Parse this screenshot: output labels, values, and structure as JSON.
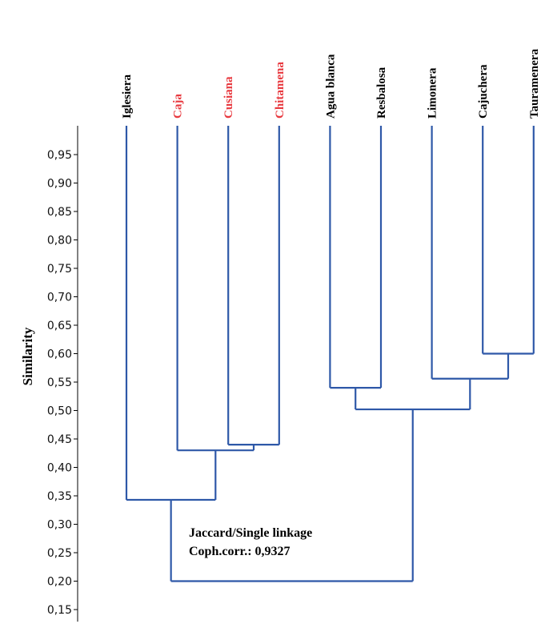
{
  "chart_data": {
    "type": "dendrogram",
    "ylabel": "Similarity",
    "ylim": [
      0.13,
      1.0
    ],
    "yticks": [
      0.15,
      0.2,
      0.25,
      0.3,
      0.35,
      0.4,
      0.45,
      0.5,
      0.55,
      0.6,
      0.65,
      0.7,
      0.75,
      0.8,
      0.85,
      0.9,
      0.95
    ],
    "ytick_labels": [
      "0,15",
      "0,20",
      "0,25",
      "0,30",
      "0,35",
      "0,40",
      "0,45",
      "0,50",
      "0,55",
      "0,60",
      "0,65",
      "0,70",
      "0,75",
      "0,80",
      "0,85",
      "0,90",
      "0,95"
    ],
    "leaves": [
      {
        "label": "Iglesiera",
        "color": "#000000"
      },
      {
        "label": "Caja",
        "color": "#e8393f"
      },
      {
        "label": "Cusiana",
        "color": "#e8393f"
      },
      {
        "label": "Chitamena",
        "color": "#e8393f"
      },
      {
        "label": "Agua blanca",
        "color": "#000000"
      },
      {
        "label": "Resbalosa",
        "color": "#000000"
      },
      {
        "label": "Limonera",
        "color": "#000000"
      },
      {
        "label": "Cajuchera",
        "color": "#000000"
      },
      {
        "label": "Tauramenera",
        "color": "#000000"
      }
    ],
    "merges": [
      {
        "a": "L2",
        "b": "L3",
        "sim": 0.44
      },
      {
        "a": "L1",
        "b": "N0",
        "sim": 0.43
      },
      {
        "a": "L0",
        "b": "N1",
        "sim": 0.343
      },
      {
        "a": "L4",
        "b": "L5",
        "sim": 0.54
      },
      {
        "a": "L7",
        "b": "L8",
        "sim": 0.6
      },
      {
        "a": "L6",
        "b": "N4",
        "sim": 0.556
      },
      {
        "a": "N3",
        "b": "N5",
        "sim": 0.502
      },
      {
        "a": "N2",
        "b": "N6",
        "sim": 0.2
      }
    ],
    "annotations": [
      "Jaccard/Single linkage",
      "Coph.corr.: 0,9327"
    ],
    "link_color": "#2e58a8"
  }
}
